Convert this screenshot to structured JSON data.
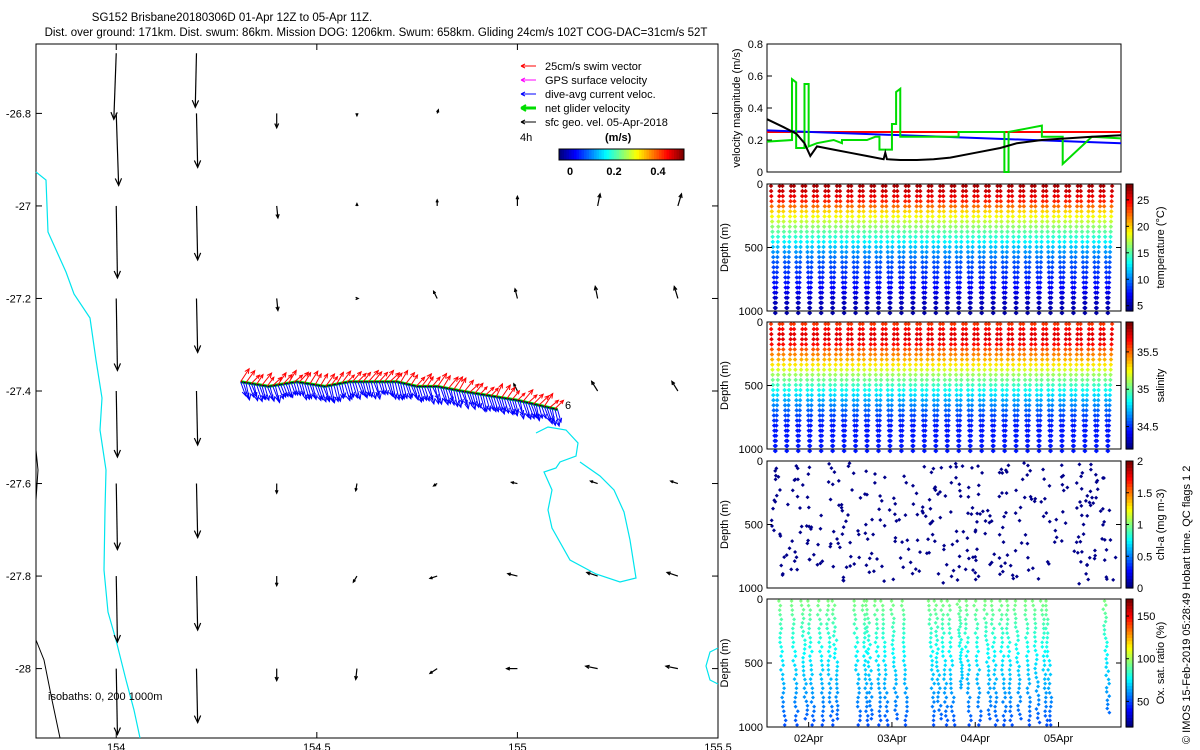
{
  "header": {
    "title_line1": "SG152 Brisbane20180306D 01-Apr 12Z to 05-Apr 11Z.",
    "title_line2": "Dist. over ground: 171km. Dist. swum: 86km. Mission DOG: 1206km. Swum: 658km. Gliding 24cm/s 102T COG-DAC=31cm/s 52T"
  },
  "map": {
    "legend": [
      {
        "label": "25cm/s swim vector",
        "color": "#ff0000"
      },
      {
        "label": "GPS surface velocity",
        "color": "#ff00ff"
      },
      {
        "label": "dive-avg current veloc.",
        "color": "#0000ff"
      },
      {
        "label": "net glider velocity",
        "color": "#00dd00"
      },
      {
        "label": "sfc geo. vel. 05-Apr-2018",
        "color": "#000000"
      }
    ],
    "interval_label": "4h",
    "colorbar_unit": "(m/s)",
    "colorbar_ticks": [
      "0",
      "0.2",
      "0.4"
    ],
    "track_end_label": "6",
    "isobaths_label": "isobaths: 0, 200  1000m",
    "coast_color": "#00e5ee"
  },
  "credit": "© IMOS 15-Feb-2019 05:28:49 Hobart time. QC flags 1  2",
  "chart_data": [
    {
      "id": "map",
      "type": "scatter",
      "title": "SG152 Brisbane20180306D 01-Apr 12Z to 05-Apr 11Z.",
      "xlabel": "",
      "ylabel": "",
      "xlim": [
        153.8,
        155.5
      ],
      "ylim": [
        -28.15,
        -26.65
      ],
      "x_ticks": [
        154,
        154.5,
        155,
        155.5
      ],
      "x_tick_labels": [
        "154",
        "154.5",
        "155",
        "155.5"
      ],
      "y_ticks": [
        -26.8,
        -27,
        -27.2,
        -27.4,
        -27.6,
        -27.8,
        -28
      ],
      "y_tick_labels": [
        "-26.8",
        "-27",
        "-27.2",
        "-27.4",
        "-27.6",
        "-27.8",
        "-28"
      ],
      "track": {
        "lon": [
          154.31,
          154.38,
          154.45,
          154.52,
          154.58,
          154.64,
          154.7,
          154.75,
          154.8,
          154.86,
          154.93,
          155.0,
          155.05,
          155.1
        ],
        "lat": [
          -27.38,
          -27.39,
          -27.38,
          -27.39,
          -27.38,
          -27.38,
          -27.38,
          -27.39,
          -27.39,
          -27.4,
          -27.41,
          -27.42,
          -27.43,
          -27.44
        ]
      },
      "geo_velocity": {
        "rows": [
          {
            "lat": -26.67,
            "u": [
              -0.02,
              -0.01,
              null,
              null,
              null,
              null,
              null,
              null
            ],
            "v": [
              -0.55,
              -0.45,
              null,
              null,
              null,
              null,
              null,
              null
            ]
          },
          {
            "lat": -26.8,
            "u": [
              0.02,
              0.01,
              0.0,
              0.0,
              0.01,
              null,
              null,
              null
            ],
            "v": [
              -0.6,
              -0.45,
              -0.12,
              -0.02,
              0.03,
              null,
              null,
              null
            ]
          },
          {
            "lat": -27.0,
            "u": [
              0.01,
              0.01,
              0.01,
              0.0,
              0.0,
              0.0,
              0.02,
              0.03
            ],
            "v": [
              -0.6,
              -0.45,
              -0.1,
              0.02,
              0.05,
              0.08,
              0.1,
              0.1
            ]
          },
          {
            "lat": -27.2,
            "u": [
              0.01,
              0.01,
              0.01,
              0.01,
              -0.03,
              -0.02,
              -0.02,
              -0.03
            ],
            "v": [
              -0.6,
              -0.45,
              -0.1,
              0.0,
              0.06,
              0.08,
              0.1,
              0.1
            ]
          },
          {
            "lat": -27.4,
            "u": [
              0.01,
              0.01,
              null,
              null,
              null,
              -0.03,
              -0.05,
              -0.05
            ],
            "v": [
              -0.55,
              -0.45,
              null,
              null,
              null,
              0.06,
              0.08,
              0.08
            ]
          },
          {
            "lat": -27.6,
            "u": [
              0.01,
              0.01,
              0.0,
              -0.01,
              -0.03,
              -0.05,
              -0.06,
              -0.06
            ],
            "v": [
              -0.55,
              -0.45,
              -0.08,
              -0.06,
              -0.02,
              0.01,
              0.02,
              0.02
            ]
          },
          {
            "lat": -27.8,
            "u": [
              0.01,
              0.01,
              0.0,
              -0.03,
              -0.06,
              -0.08,
              -0.09,
              -0.09
            ],
            "v": [
              -0.55,
              -0.45,
              -0.08,
              -0.05,
              -0.02,
              0.02,
              0.03,
              0.03
            ]
          },
          {
            "lat": -28.0,
            "u": [
              0.01,
              0.01,
              0.0,
              -0.01,
              -0.06,
              -0.09,
              -0.1,
              -0.1
            ],
            "v": [
              -0.55,
              -0.45,
              -0.1,
              -0.09,
              -0.04,
              0.0,
              0.02,
              0.02
            ]
          }
        ],
        "lons": [
          154.0,
          154.2,
          154.4,
          154.6,
          154.8,
          155.0,
          155.2,
          155.4
        ]
      }
    },
    {
      "id": "velocity",
      "type": "line",
      "xlabel": "",
      "ylabel": "velocity magnitude (m/s)",
      "xlim": [
        0,
        4.25
      ],
      "ylim": [
        0,
        0.8
      ],
      "y_ticks": [
        0,
        0.2,
        0.4,
        0.6,
        0.8
      ],
      "y_tick_labels": [
        "0",
        "0.2",
        "0.4",
        "0.6",
        "0.8"
      ],
      "series": [
        {
          "name": "swim speed",
          "color": "#ff0000",
          "x": [
            0,
            4.25
          ],
          "y": [
            0.25,
            0.25
          ]
        },
        {
          "name": "dive-avg current",
          "color": "#0000ff",
          "x": [
            0,
            4.25
          ],
          "y": [
            0.26,
            0.18
          ]
        },
        {
          "name": "net glider velocity",
          "color": "#00dd00",
          "x": [
            0,
            0.3,
            0.3,
            0.35,
            0.35,
            0.45,
            0.45,
            0.5,
            0.5,
            0.6,
            0.8,
            0.9,
            0.9,
            1.2,
            1.3,
            1.35,
            1.35,
            1.5,
            1.5,
            1.55,
            1.55,
            1.6,
            1.6,
            1.9,
            2.3,
            2.3,
            2.6,
            2.85,
            2.85,
            2.9,
            2.9,
            3.1,
            3.3,
            3.3,
            3.55,
            3.55,
            3.9,
            4.25
          ],
          "y": [
            0.19,
            0.2,
            0.58,
            0.56,
            0.15,
            0.15,
            0.55,
            0.55,
            0.16,
            0.18,
            0.2,
            0.18,
            0.2,
            0.2,
            0.22,
            0.22,
            0.14,
            0.14,
            0.3,
            0.3,
            0.5,
            0.52,
            0.22,
            0.22,
            0.22,
            0.25,
            0.25,
            0.25,
            0.0,
            0.0,
            0.25,
            0.27,
            0.29,
            0.22,
            0.22,
            0.05,
            0.22,
            0.21
          ]
        },
        {
          "name": "sfc geo. vel.",
          "color": "#000000",
          "x": [
            0,
            0.2,
            0.35,
            0.45,
            0.52,
            0.6,
            0.8,
            1.0,
            1.2,
            1.4,
            1.42,
            1.44,
            1.6,
            1.8,
            2.0,
            2.2,
            2.5,
            2.8,
            3.0,
            3.3,
            3.6,
            3.9,
            4.25
          ],
          "y": [
            0.33,
            0.28,
            0.24,
            0.18,
            0.1,
            0.16,
            0.14,
            0.12,
            0.1,
            0.08,
            0.12,
            0.08,
            0.075,
            0.075,
            0.08,
            0.09,
            0.12,
            0.15,
            0.18,
            0.2,
            0.21,
            0.22,
            0.23
          ]
        }
      ]
    },
    {
      "id": "temperature",
      "type": "scatter",
      "ylabel": "Depth (m)",
      "clabel": "temperature (°C)",
      "ylim": [
        1000,
        0
      ],
      "y_ticks": [
        0,
        500,
        1000
      ],
      "y_tick_labels": [
        "0",
        "500",
        "1000"
      ],
      "clim": [
        4,
        28
      ],
      "c_ticks": [
        5,
        10,
        15,
        20,
        25
      ],
      "c_tick_labels": [
        "5",
        "10",
        "15",
        "20",
        "25"
      ],
      "profile": {
        "depth": [
          0,
          50,
          100,
          150,
          200,
          300,
          400,
          500,
          600,
          700,
          800,
          900,
          1000
        ],
        "value": [
          27,
          26,
          25,
          23,
          20,
          17,
          14,
          11,
          9,
          8,
          7,
          5.5,
          5
        ]
      },
      "n_dives": 30
    },
    {
      "id": "salinity",
      "type": "scatter",
      "ylabel": "Depth (m)",
      "clabel": "salinity",
      "ylim": [
        1000,
        0
      ],
      "y_ticks": [
        0,
        500,
        1000
      ],
      "y_tick_labels": [
        "0",
        "500",
        "1000"
      ],
      "clim": [
        34.2,
        35.9
      ],
      "c_ticks": [
        34.5,
        35,
        35.5
      ],
      "c_tick_labels": [
        "34.5",
        "35",
        "35.5"
      ],
      "profile": {
        "depth": [
          0,
          50,
          100,
          150,
          200,
          300,
          400,
          500,
          600,
          700,
          800,
          900,
          1000
        ],
        "value": [
          35.6,
          35.7,
          35.75,
          35.7,
          35.55,
          35.35,
          35.1,
          34.9,
          34.7,
          34.55,
          34.45,
          34.45,
          34.45
        ]
      },
      "n_dives": 30
    },
    {
      "id": "chla",
      "type": "scatter",
      "ylabel": "Depth (m)",
      "clabel": "chl-a (mg m-3)",
      "ylim": [
        1000,
        0
      ],
      "y_ticks": [
        0,
        500,
        1000
      ],
      "y_tick_labels": [
        "0",
        "500",
        "1000"
      ],
      "clim": [
        0,
        2
      ],
      "c_ticks": [
        0,
        0.5,
        1,
        1.5,
        2
      ],
      "c_tick_labels": [
        "0",
        "0.5",
        "1",
        "1.5",
        "2"
      ],
      "n_points": 360
    },
    {
      "id": "oxygen",
      "type": "scatter",
      "ylabel": "Depth (m)",
      "clabel": "Ox. sat. ratio (%)",
      "ylim": [
        1000,
        0
      ],
      "y_ticks": [
        0,
        500,
        1000
      ],
      "y_tick_labels": [
        "0",
        "500",
        "1000"
      ],
      "clim": [
        20,
        170
      ],
      "c_ticks": [
        50,
        100,
        150
      ],
      "c_tick_labels": [
        "50",
        "100",
        "150"
      ],
      "dive_x": [
        0.15,
        0.3,
        0.42,
        0.5,
        0.62,
        0.72,
        0.8,
        1.05,
        1.15,
        1.2,
        1.3,
        1.38,
        1.5,
        1.62,
        1.95,
        2.02,
        2.1,
        2.18,
        2.3,
        2.38,
        2.5,
        2.62,
        2.7,
        2.8,
        2.88,
        2.98,
        3.1,
        3.2,
        3.3,
        3.35,
        4.05
      ],
      "dive_max": [
        1000,
        1000,
        950,
        1000,
        1000,
        1000,
        950,
        1000,
        1000,
        950,
        1000,
        1000,
        950,
        1000,
        1000,
        950,
        1000,
        1000,
        700,
        1000,
        1000,
        950,
        1000,
        1000,
        1000,
        950,
        1000,
        980,
        1000,
        1000,
        900
      ],
      "x_ticks": [
        0.5,
        1.5,
        2.5,
        3.5
      ],
      "x_tick_labels": [
        "02Apr",
        "03Apr",
        "04Apr",
        "05Apr"
      ]
    }
  ]
}
